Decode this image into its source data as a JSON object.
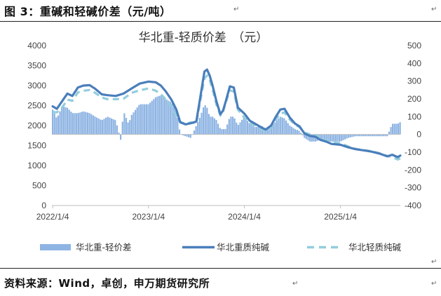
{
  "caption": {
    "text": "图 3：重碱和轻碱价差（元/吨）"
  },
  "source": {
    "text": "资料来源：Wind，卓创，申万期货研究所"
  },
  "chart_data": {
    "type": "bar+line",
    "title": "华北重-轻质价差　（元）",
    "x_range": [
      "2022-01-01",
      "2025-08-20"
    ],
    "x_ticks": [
      {
        "date": "2022-01-04",
        "label": "2022/1/4"
      },
      {
        "date": "2023-01-04",
        "label": "2023/1/4"
      },
      {
        "date": "2024-01-04",
        "label": "2024/1/4"
      },
      {
        "date": "2025-01-04",
        "label": "2025/1/4"
      }
    ],
    "y_left": {
      "min": 0,
      "max": 4000,
      "step": 500
    },
    "y_right": {
      "min": -400,
      "max": 500,
      "step": 100
    },
    "legend_position": "bottom",
    "legend": [
      {
        "key": "spread",
        "label": "华北重-轻价差",
        "style": "bar",
        "color": "#8eb4e3"
      },
      {
        "key": "heavy",
        "label": "华北重质纯碱",
        "style": "line",
        "color": "#4a7ebb"
      },
      {
        "key": "light",
        "label": "华北轻质纯碱",
        "style": "dash",
        "color": "#93cddd"
      }
    ],
    "series": [
      {
        "key": "heavy",
        "name": "华北重质纯碱",
        "axis": "left",
        "points": [
          [
            "2022-01-04",
            2480
          ],
          [
            "2022-01-20",
            2420
          ],
          [
            "2022-02-10",
            2620
          ],
          [
            "2022-03-01",
            2800
          ],
          [
            "2022-03-20",
            2740
          ],
          [
            "2022-04-10",
            2950
          ],
          [
            "2022-05-01",
            3000
          ],
          [
            "2022-05-25",
            3010
          ],
          [
            "2022-06-15",
            2920
          ],
          [
            "2022-07-10",
            2780
          ],
          [
            "2022-08-01",
            2760
          ],
          [
            "2022-09-01",
            2740
          ],
          [
            "2022-10-01",
            2800
          ],
          [
            "2022-11-01",
            2930
          ],
          [
            "2022-12-01",
            3050
          ],
          [
            "2023-01-04",
            3100
          ],
          [
            "2023-02-01",
            3080
          ],
          [
            "2023-02-20",
            3000
          ],
          [
            "2023-03-10",
            2860
          ],
          [
            "2023-04-01",
            2650
          ],
          [
            "2023-04-20",
            2400
          ],
          [
            "2023-05-05",
            2080
          ],
          [
            "2023-05-25",
            2030
          ],
          [
            "2023-06-15",
            2060
          ],
          [
            "2023-07-05",
            2100
          ],
          [
            "2023-07-20",
            2700
          ],
          [
            "2023-08-05",
            3350
          ],
          [
            "2023-08-15",
            3400
          ],
          [
            "2023-08-25",
            3250
          ],
          [
            "2023-09-05",
            3000
          ],
          [
            "2023-09-20",
            2600
          ],
          [
            "2023-10-05",
            2280
          ],
          [
            "2023-10-15",
            2380
          ],
          [
            "2023-10-25",
            2600
          ],
          [
            "2023-11-10",
            2980
          ],
          [
            "2023-11-25",
            2950
          ],
          [
            "2023-12-10",
            2450
          ],
          [
            "2024-01-04",
            2300
          ],
          [
            "2024-01-25",
            2120
          ],
          [
            "2024-02-15",
            2040
          ],
          [
            "2024-03-10",
            1950
          ],
          [
            "2024-03-25",
            1900
          ],
          [
            "2024-04-15",
            2000
          ],
          [
            "2024-05-01",
            2200
          ],
          [
            "2024-05-20",
            2400
          ],
          [
            "2024-06-05",
            2420
          ],
          [
            "2024-06-25",
            2200
          ],
          [
            "2024-07-15",
            2050
          ],
          [
            "2024-08-01",
            1980
          ],
          [
            "2024-08-20",
            1800
          ],
          [
            "2024-09-10",
            1740
          ],
          [
            "2024-10-01",
            1720
          ],
          [
            "2024-10-20",
            1640
          ],
          [
            "2024-11-10",
            1600
          ],
          [
            "2024-12-01",
            1540
          ],
          [
            "2025-01-04",
            1520
          ],
          [
            "2025-02-01",
            1460
          ],
          [
            "2025-03-01",
            1410
          ],
          [
            "2025-04-01",
            1380
          ],
          [
            "2025-05-01",
            1350
          ],
          [
            "2025-06-01",
            1300
          ],
          [
            "2025-07-01",
            1230
          ],
          [
            "2025-07-20",
            1270
          ],
          [
            "2025-08-10",
            1210
          ],
          [
            "2025-08-20",
            1250
          ]
        ]
      },
      {
        "key": "light",
        "name": "华北轻质纯碱",
        "axis": "left",
        "points": [
          [
            "2022-01-04",
            2340
          ],
          [
            "2022-01-20",
            2330
          ],
          [
            "2022-02-10",
            2460
          ],
          [
            "2022-03-01",
            2650
          ],
          [
            "2022-03-20",
            2620
          ],
          [
            "2022-04-10",
            2830
          ],
          [
            "2022-05-01",
            2870
          ],
          [
            "2022-05-25",
            2890
          ],
          [
            "2022-06-15",
            2820
          ],
          [
            "2022-07-10",
            2700
          ],
          [
            "2022-08-01",
            2660
          ],
          [
            "2022-09-01",
            2660
          ],
          [
            "2022-10-01",
            2670
          ],
          [
            "2022-11-01",
            2820
          ],
          [
            "2022-12-01",
            2880
          ],
          [
            "2023-01-04",
            2930
          ],
          [
            "2023-02-01",
            2870
          ],
          [
            "2023-02-20",
            2780
          ],
          [
            "2023-03-10",
            2660
          ],
          [
            "2023-04-01",
            2470
          ],
          [
            "2023-04-20",
            2260
          ],
          [
            "2023-05-05",
            2090
          ],
          [
            "2023-05-25",
            2040
          ],
          [
            "2023-06-15",
            2080
          ],
          [
            "2023-07-05",
            2050
          ],
          [
            "2023-07-20",
            2600
          ],
          [
            "2023-08-05",
            3180
          ],
          [
            "2023-08-15",
            3250
          ],
          [
            "2023-08-25",
            3150
          ],
          [
            "2023-09-05",
            2900
          ],
          [
            "2023-09-20",
            2520
          ],
          [
            "2023-10-05",
            2250
          ],
          [
            "2023-10-15",
            2350
          ],
          [
            "2023-10-25",
            2570
          ],
          [
            "2023-11-10",
            2880
          ],
          [
            "2023-11-25",
            2850
          ],
          [
            "2023-12-10",
            2400
          ],
          [
            "2024-01-04",
            2200
          ],
          [
            "2024-01-25",
            2060
          ],
          [
            "2024-02-15",
            2000
          ],
          [
            "2024-03-10",
            1900
          ],
          [
            "2024-03-25",
            1870
          ],
          [
            "2024-04-15",
            1950
          ],
          [
            "2024-05-01",
            2130
          ],
          [
            "2024-05-20",
            2300
          ],
          [
            "2024-06-05",
            2330
          ],
          [
            "2024-06-25",
            2150
          ],
          [
            "2024-07-15",
            2020
          ],
          [
            "2024-08-01",
            1960
          ],
          [
            "2024-08-20",
            1820
          ],
          [
            "2024-09-10",
            1780
          ],
          [
            "2024-10-01",
            1760
          ],
          [
            "2024-10-20",
            1670
          ],
          [
            "2024-11-10",
            1640
          ],
          [
            "2024-12-01",
            1580
          ],
          [
            "2025-01-04",
            1560
          ],
          [
            "2025-02-01",
            1480
          ],
          [
            "2025-03-01",
            1420
          ],
          [
            "2025-04-01",
            1390
          ],
          [
            "2025-05-01",
            1360
          ],
          [
            "2025-06-01",
            1310
          ],
          [
            "2025-07-01",
            1240
          ],
          [
            "2025-07-20",
            1210
          ],
          [
            "2025-08-10",
            1150
          ],
          [
            "2025-08-20",
            1180
          ]
        ]
      },
      {
        "key": "spread",
        "name": "华北重-轻价差",
        "axis": "right",
        "points": [
          [
            "2022-01-04",
            140
          ],
          [
            "2022-01-20",
            90
          ],
          [
            "2022-02-10",
            160
          ],
          [
            "2022-03-01",
            150
          ],
          [
            "2022-03-20",
            120
          ],
          [
            "2022-04-10",
            120
          ],
          [
            "2022-05-01",
            130
          ],
          [
            "2022-05-25",
            120
          ],
          [
            "2022-06-15",
            100
          ],
          [
            "2022-07-10",
            80
          ],
          [
            "2022-08-01",
            100
          ],
          [
            "2022-09-01",
            80
          ],
          [
            "2022-09-20",
            -30
          ],
          [
            "2022-10-01",
            130
          ],
          [
            "2022-10-20",
            60
          ],
          [
            "2022-11-01",
            110
          ],
          [
            "2022-12-01",
            170
          ],
          [
            "2023-01-04",
            170
          ],
          [
            "2023-02-01",
            210
          ],
          [
            "2023-02-20",
            220
          ],
          [
            "2023-03-10",
            200
          ],
          [
            "2023-04-01",
            180
          ],
          [
            "2023-04-20",
            140
          ],
          [
            "2023-05-05",
            0
          ],
          [
            "2023-05-25",
            -10
          ],
          [
            "2023-06-15",
            -20
          ],
          [
            "2023-07-05",
            50
          ],
          [
            "2023-07-20",
            100
          ],
          [
            "2023-08-05",
            170
          ],
          [
            "2023-08-15",
            150
          ],
          [
            "2023-08-25",
            100
          ],
          [
            "2023-09-05",
            100
          ],
          [
            "2023-09-20",
            80
          ],
          [
            "2023-10-05",
            30
          ],
          [
            "2023-10-15",
            30
          ],
          [
            "2023-10-25",
            30
          ],
          [
            "2023-11-10",
            100
          ],
          [
            "2023-11-25",
            100
          ],
          [
            "2023-12-10",
            50
          ],
          [
            "2024-01-04",
            100
          ],
          [
            "2024-01-25",
            60
          ],
          [
            "2024-02-15",
            40
          ],
          [
            "2024-03-10",
            50
          ],
          [
            "2024-03-25",
            30
          ],
          [
            "2024-04-15",
            50
          ],
          [
            "2024-05-01",
            70
          ],
          [
            "2024-05-20",
            100
          ],
          [
            "2024-06-05",
            90
          ],
          [
            "2024-06-25",
            50
          ],
          [
            "2024-07-15",
            30
          ],
          [
            "2024-08-01",
            20
          ],
          [
            "2024-08-20",
            -20
          ],
          [
            "2024-09-10",
            -40
          ],
          [
            "2024-10-01",
            -40
          ],
          [
            "2024-10-20",
            -30
          ],
          [
            "2024-11-10",
            -40
          ],
          [
            "2024-12-01",
            -40
          ],
          [
            "2025-01-04",
            -40
          ],
          [
            "2025-02-01",
            -20
          ],
          [
            "2025-03-01",
            -10
          ],
          [
            "2025-04-01",
            -10
          ],
          [
            "2025-05-01",
            -10
          ],
          [
            "2025-06-01",
            -10
          ],
          [
            "2025-07-01",
            -10
          ],
          [
            "2025-07-20",
            60
          ],
          [
            "2025-08-10",
            60
          ],
          [
            "2025-08-20",
            70
          ]
        ]
      }
    ]
  }
}
